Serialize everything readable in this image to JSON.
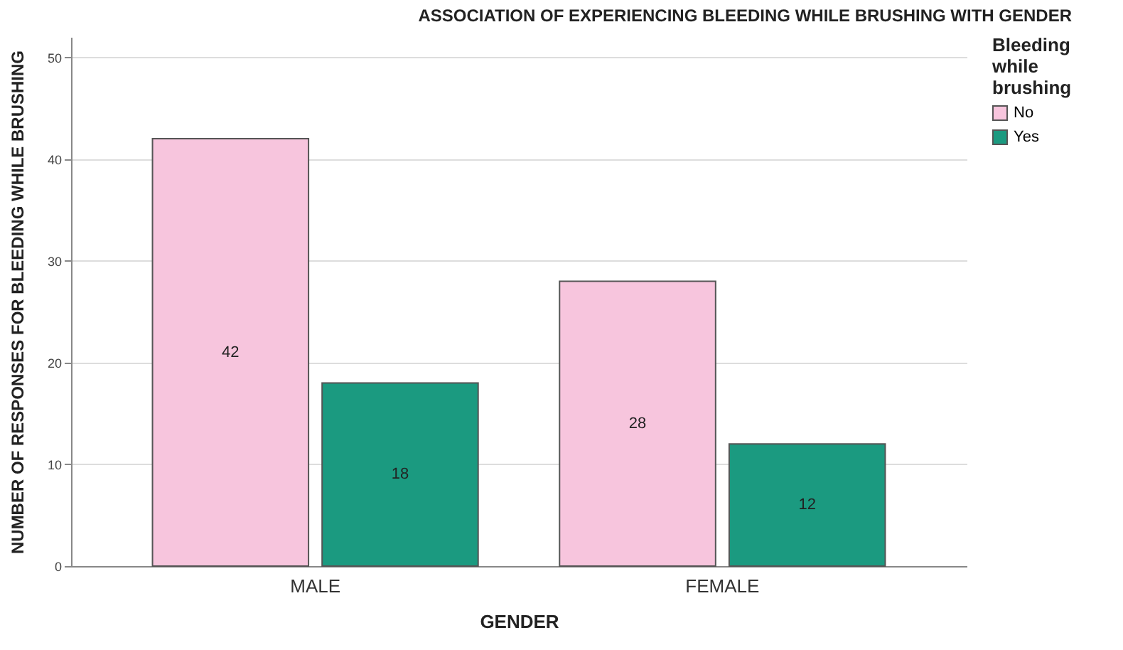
{
  "chart_data": {
    "type": "bar",
    "title": "ASSOCIATION OF EXPERIENCING BLEEDING WHILE BRUSHING WITH GENDER",
    "xlabel": "GENDER",
    "ylabel": "NUMBER OF RESPONSES FOR BLEEDING WHILE BRUSHING",
    "legend_title": "Bleeding while brushing",
    "categories": [
      "MALE",
      "FEMALE"
    ],
    "series": [
      {
        "name": "No",
        "color": "#f7c5dd",
        "values": [
          42,
          28
        ]
      },
      {
        "name": "Yes",
        "color": "#1b9a80",
        "values": [
          18,
          12
        ]
      }
    ],
    "ylim": [
      0,
      52
    ],
    "yticks": [
      0,
      10,
      20,
      30,
      40,
      50
    ],
    "grid": "y",
    "legend": "top right",
    "data_labels": true
  }
}
